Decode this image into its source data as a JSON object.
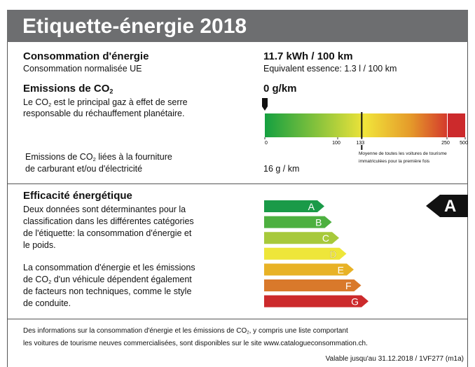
{
  "header": {
    "title": "Etiquette-énergie 2018"
  },
  "consumption": {
    "title": "Consommation d'énergie",
    "subtitle": "Consommation normalisée UE",
    "value": "11.7 kWh / 100 km",
    "equivalent": "Equivalent essence: 1.3 l / 100 km"
  },
  "emissions": {
    "title": "Emissions de CO",
    "title_sub": "2",
    "text_1": "Le CO",
    "text_sub": "2",
    "text_2": " est le principal gaz à effet de serre",
    "text_3": "responsable du réchauffement planétaire.",
    "value": "0 g/km",
    "marker": 0,
    "ticks": [
      0,
      100,
      133,
      250,
      500
    ],
    "average": 133,
    "average_note_1": "Moyenne de toutes les voitures de tourisme",
    "average_note_2": "immatriculées pour la première fois",
    "fuel_1": "Emissions de CO",
    "fuel_sub": "2",
    "fuel_2": " liées à la fourniture",
    "fuel_3": "de carburant et/ou d'électricité",
    "fuel_value": "16 g / km"
  },
  "efficiency": {
    "title": "Efficacité énergétique",
    "paragraph_1": [
      "Deux données sont déterminantes pour la",
      "classification dans les différentes catégories",
      "de l'étiquette: la consommation d'énergie et",
      "le poids."
    ],
    "paragraph_2_line_1": "La consommation d'énergie et les émissions",
    "paragraph_2_line_2_before": "de CO",
    "paragraph_2_line_2_sub": "2",
    "paragraph_2_line_2_after": " d'un véhicule dépendent également",
    "paragraph_2_line_3": "de facteurs non techniques, comme le style",
    "paragraph_2_line_4": "de conduite.",
    "classes": [
      "A",
      "B",
      "C",
      "D",
      "E",
      "F",
      "G"
    ],
    "colors": [
      "#1a9a48",
      "#4db040",
      "#a7c93b",
      "#eee63a",
      "#e8b226",
      "#d9792b",
      "#cc2a2c"
    ],
    "current": "A"
  },
  "footer": {
    "line_1_before": "Des informations sur la consommation d'énergie et les émissions de CO",
    "line_1_sub": "2",
    "line_1_after": ", y compris une liste comportant",
    "line_2": "les voitures de tourisme neuves commercialisées, sont disponibles sur le site www.catalogueconsommation.ch.",
    "validity": "Valable jusqu'au 31.12.2018 / 1VF277 (m1a)"
  }
}
